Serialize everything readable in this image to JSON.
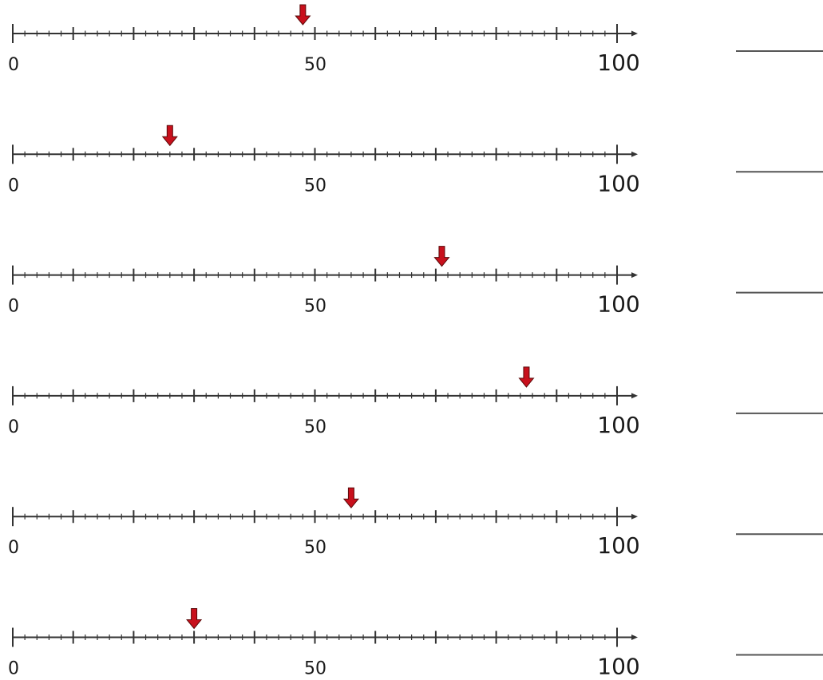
{
  "number_line": {
    "min": 0,
    "max": 100,
    "minor_step": 2,
    "major_step": 10,
    "tick_labels": [
      "0",
      "50",
      "100"
    ],
    "line_color": "#333333",
    "arrow_color": "#c8101c",
    "arrow_icon": "down-arrow-marker"
  },
  "exercises": [
    {
      "arrow_value": 48,
      "answer": ""
    },
    {
      "arrow_value": 26,
      "answer": ""
    },
    {
      "arrow_value": 71,
      "answer": ""
    },
    {
      "arrow_value": 85,
      "answer": ""
    },
    {
      "arrow_value": 56,
      "answer": ""
    },
    {
      "arrow_value": 30,
      "answer": ""
    }
  ]
}
